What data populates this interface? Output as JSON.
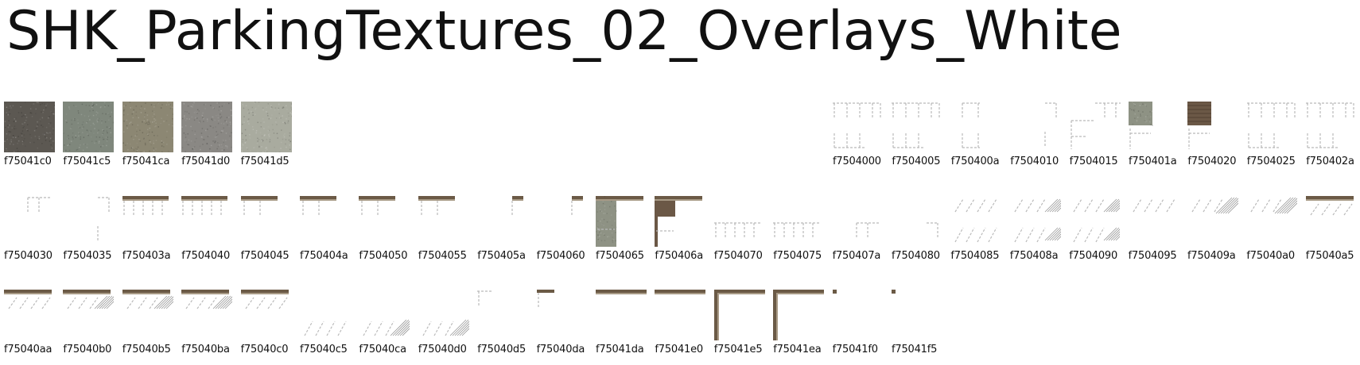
{
  "title": "SHK_ParkingTextures_02_Overlays_White",
  "textures": [
    {
      "id": "f75041c0",
      "kind": "solid",
      "color": "#5c5852"
    },
    {
      "id": "f75041c5",
      "kind": "solid",
      "color": "#7f877c"
    },
    {
      "id": "f75041ca",
      "kind": "solid",
      "color": "#8c8773"
    },
    {
      "id": "f75041d0",
      "kind": "solid",
      "color": "#8a8884"
    },
    {
      "id": "f75041d5",
      "kind": "solid",
      "color": "#a9ab9f"
    },
    {
      "id": "f7504000",
      "kind": "stalls"
    },
    {
      "id": "f7504005",
      "kind": "stalls"
    },
    {
      "id": "f750400a",
      "kind": "stalls-sparse"
    },
    {
      "id": "f7504010",
      "kind": "corner"
    },
    {
      "id": "f7504015",
      "kind": "stalls-corner"
    },
    {
      "id": "f750401a",
      "kind": "patch-concrete"
    },
    {
      "id": "f7504020",
      "kind": "patch-brick"
    },
    {
      "id": "f7504025",
      "kind": "stalls"
    },
    {
      "id": "f750402a",
      "kind": "stalls"
    },
    {
      "id": "f7504030",
      "kind": "single-stall"
    },
    {
      "id": "f7504035",
      "kind": "corner"
    },
    {
      "id": "f750403a",
      "kind": "curb-stalls"
    },
    {
      "id": "f7504040",
      "kind": "curb-stalls"
    },
    {
      "id": "f7504045",
      "kind": "curb-short"
    },
    {
      "id": "f750404a",
      "kind": "curb-short"
    },
    {
      "id": "f7504050",
      "kind": "curb-short"
    },
    {
      "id": "f7504055",
      "kind": "curb-short"
    },
    {
      "id": "f750405a",
      "kind": "curb-tiny"
    },
    {
      "id": "f7504060",
      "kind": "curb-tiny"
    },
    {
      "id": "f7504065",
      "kind": "block-concrete"
    },
    {
      "id": "f750406a",
      "kind": "block-brick"
    },
    {
      "id": "f7504070",
      "kind": "stalls-low"
    },
    {
      "id": "f7504075",
      "kind": "stalls-low"
    },
    {
      "id": "f750407a",
      "kind": "single-stall-low"
    },
    {
      "id": "f7504080",
      "kind": "corner-low"
    },
    {
      "id": "f7504085",
      "kind": "diagonal"
    },
    {
      "id": "f750408a",
      "kind": "diagonal-hatch"
    },
    {
      "id": "f7504090",
      "kind": "diagonal-hatch"
    },
    {
      "id": "f7504095",
      "kind": "diagonal-top"
    },
    {
      "id": "f750409a",
      "kind": "diagonal-hatch-top"
    },
    {
      "id": "f75040a0",
      "kind": "diagonal-hatch-top"
    },
    {
      "id": "f75040a5",
      "kind": "curb-diagonal"
    },
    {
      "id": "f75040aa",
      "kind": "curb-diagonal"
    },
    {
      "id": "f75040b0",
      "kind": "curb-diagonal-hatch"
    },
    {
      "id": "f75040b5",
      "kind": "curb-diagonal-hatch"
    },
    {
      "id": "f75040ba",
      "kind": "curb-diagonal-hatch"
    },
    {
      "id": "f75040c0",
      "kind": "curb-diagonal"
    },
    {
      "id": "f75040c5",
      "kind": "diagonal-bottom"
    },
    {
      "id": "f75040ca",
      "kind": "diagonal-hatch-bottom"
    },
    {
      "id": "f75040d0",
      "kind": "diagonal-hatch-bottom"
    },
    {
      "id": "f75040d5",
      "kind": "corner-small"
    },
    {
      "id": "f75040da",
      "kind": "corner-small-curb"
    },
    {
      "id": "f75041da",
      "kind": "curb-line"
    },
    {
      "id": "f75041e0",
      "kind": "curb-line"
    },
    {
      "id": "f75041e5",
      "kind": "curb-L"
    },
    {
      "id": "f75041ea",
      "kind": "curb-L"
    },
    {
      "id": "f75041f0",
      "kind": "dot"
    },
    {
      "id": "f75041f5",
      "kind": "dot"
    }
  ]
}
